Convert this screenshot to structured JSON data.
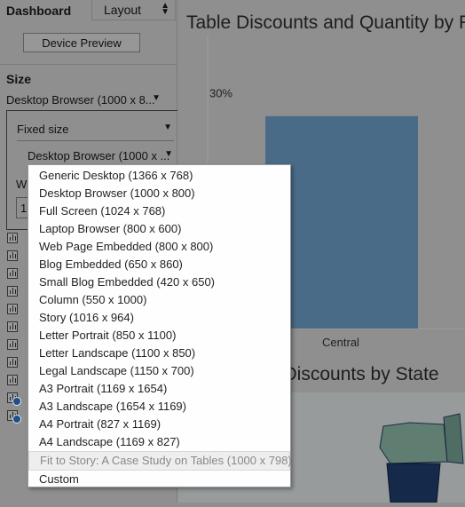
{
  "left_pane": {
    "tabs": {
      "dashboard": "Dashboard",
      "layout": "Layout"
    },
    "device_preview_label": "Device Preview",
    "size_title": "Size",
    "size_value": "Desktop Browser (1000 x 8...",
    "fixed_size_label": "Fixed size",
    "device_value": "Desktop Browser (1000 x ...",
    "w_label": "W",
    "w_value": "1"
  },
  "chart": {
    "title": "Table Discounts and Quantity by R",
    "y_tick": "30%",
    "map_title": "e Discounts by State",
    "bar_color": "#4a6b87"
  },
  "chart_data": {
    "type": "bar",
    "title": "Table Discounts and Quantity by R",
    "categories": [
      "Central"
    ],
    "values": [
      27
    ],
    "ytick_labels": [
      "30%"
    ],
    "ylim": [
      0,
      35
    ]
  },
  "dropdown": {
    "items": [
      "Generic Desktop (1366 x 768)",
      "Desktop Browser (1000 x 800)",
      "Full Screen (1024 x 768)",
      "Laptop Browser (800 x 600)",
      "Web Page Embedded (800 x 800)",
      "Blog Embedded (650 x 860)",
      "Small Blog Embedded (420 x 650)",
      "Column (550 x 1000)",
      "Story (1016 x 964)",
      "Letter Portrait (850 x 1100)",
      "Letter Landscape (1100 x 850)",
      "Legal Landscape (1150 x 700)",
      "A3 Portrait (1169 x 1654)",
      "A3 Landscape (1654 x 1169)",
      "A4 Portrait (827 x 1169)",
      "A4 Landscape (1169 x 827)",
      "Fit to Story: A Case Study on Tables (1000 x 798)",
      "Custom"
    ],
    "selected_index": 16
  },
  "colors": {
    "background_dim": "#8f8f8f",
    "map_dark": "#1a2a48",
    "map_teal": "#5f7d71"
  }
}
